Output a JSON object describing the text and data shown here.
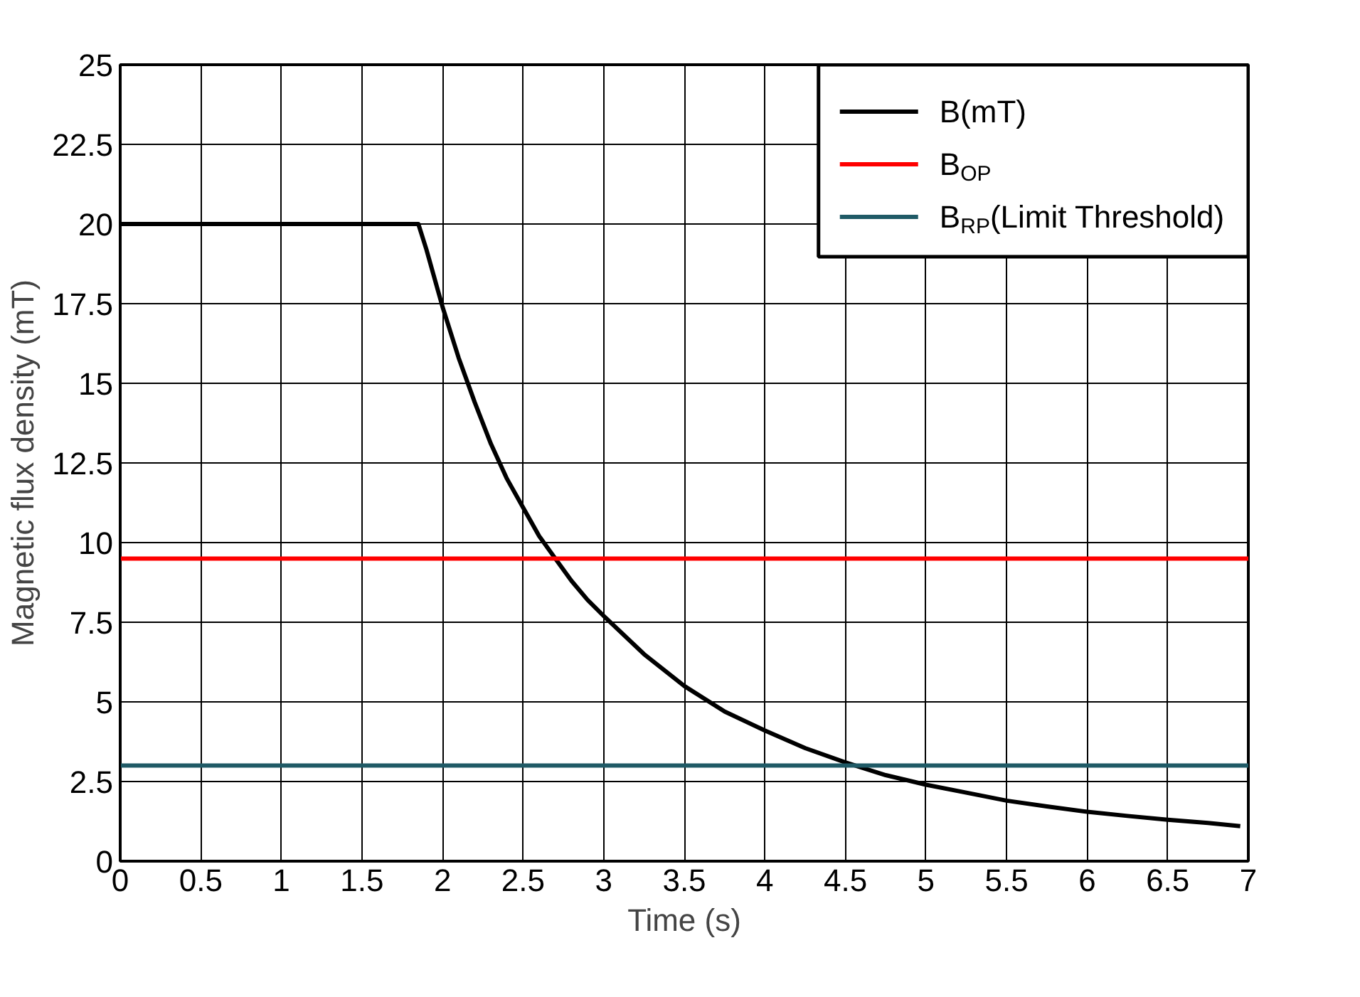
{
  "chart_data": {
    "type": "line",
    "xlabel": "Time (s)",
    "ylabel": "Magnetic flux density (mT)",
    "xlim": [
      0,
      7
    ],
    "ylim": [
      0,
      25
    ],
    "xticks": [
      0,
      0.5,
      1,
      1.5,
      2,
      2.5,
      3,
      3.5,
      4,
      4.5,
      5,
      5.5,
      6,
      6.5,
      7
    ],
    "yticks": [
      0,
      2.5,
      5,
      7.5,
      10,
      12.5,
      15,
      17.5,
      20,
      22.5,
      25
    ],
    "grid": true,
    "legend": "top right",
    "line_style": "solid",
    "marker": "none",
    "series": [
      {
        "name": "B(mT)",
        "color": "#000000",
        "x": [
          0,
          0.5,
          1,
          1.5,
          1.85,
          1.9,
          2,
          2.1,
          2.2,
          2.3,
          2.4,
          2.5,
          2.6,
          2.7,
          2.8,
          2.9,
          3,
          3.25,
          3.5,
          3.75,
          4,
          4.25,
          4.5,
          4.75,
          5,
          5.25,
          5.5,
          5.75,
          6,
          6.25,
          6.5,
          6.75,
          6.95
        ],
        "values": [
          20,
          20,
          20,
          20,
          20,
          19.2,
          17.4,
          15.8,
          14.4,
          13.1,
          12.0,
          11.1,
          10.2,
          9.5,
          8.8,
          8.2,
          7.7,
          6.5,
          5.5,
          4.7,
          4.1,
          3.55,
          3.1,
          2.7,
          2.4,
          2.15,
          1.9,
          1.72,
          1.55,
          1.42,
          1.3,
          1.2,
          1.1
        ]
      },
      {
        "name": "B$_{OP}$",
        "color": "#ff0000",
        "x": [
          0,
          7
        ],
        "values": [
          9.5,
          9.5
        ]
      },
      {
        "name": "B$_{RP}$(Limit Threshold)",
        "color": "#1f5a66",
        "x": [
          0,
          7
        ],
        "values": [
          3,
          3
        ]
      }
    ]
  }
}
